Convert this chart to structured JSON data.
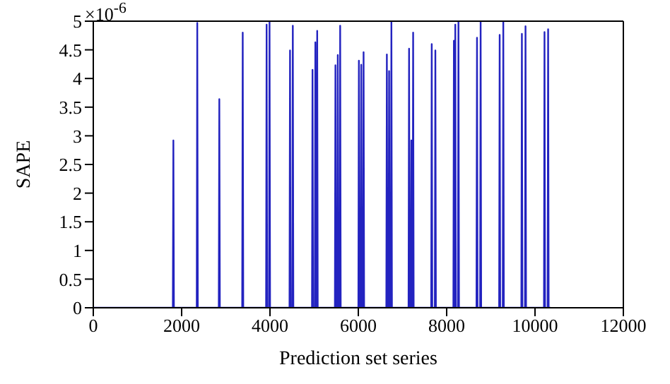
{
  "chart_data": {
    "type": "line",
    "xlabel": "Prediction set series",
    "ylabel": "SAPE",
    "annotations": [
      "×10$^{-6}$"
    ],
    "x": [
      0,
      1801,
      1813,
      1825,
      2342,
      2354,
      2366,
      2841,
      2853,
      2865,
      3371,
      3383,
      3395,
      3912,
      3924,
      3936,
      3978,
      3990,
      4002,
      4442,
      4454,
      4466,
      4505,
      4517,
      4529,
      4951,
      4963,
      4975,
      5015,
      5027,
      5039,
      5057,
      5069,
      5081,
      5470,
      5482,
      5494,
      5523,
      5535,
      5547,
      5577,
      5589,
      5601,
      6001,
      6013,
      6025,
      6054,
      6066,
      6078,
      6107,
      6119,
      6131,
      6634,
      6646,
      6658,
      6685,
      6697,
      6709,
      6737,
      6749,
      6761,
      7137,
      7149,
      7161,
      7188,
      7200,
      7212,
      7229,
      7241,
      7253,
      7650,
      7662,
      7674,
      7732,
      7744,
      7756,
      8152,
      8164,
      8176,
      8183,
      8195,
      8207,
      8255,
      8267,
      8279,
      8675,
      8687,
      8699,
      8757,
      8769,
      8781,
      9188,
      9200,
      9212,
      9270,
      9282,
      9294,
      9691,
      9703,
      9715,
      9773,
      9785,
      9797,
      10203,
      10215,
      10227,
      10285,
      10297,
      10309,
      10350
    ],
    "series": [
      {
        "color": "#2323c0",
        "values": [
          0,
          0,
          2.92,
          0,
          0,
          4.97,
          0,
          0,
          3.64,
          0,
          0,
          4.8,
          0,
          0,
          4.94,
          0,
          0,
          5.0,
          0,
          0,
          4.49,
          0,
          0,
          4.92,
          0,
          0,
          4.15,
          0,
          0,
          4.63,
          0,
          0,
          4.83,
          0,
          0,
          4.23,
          0,
          0,
          4.41,
          0,
          0,
          4.92,
          0,
          0,
          4.31,
          0,
          0,
          4.24,
          0,
          0,
          4.46,
          0,
          0,
          4.42,
          0,
          0,
          4.13,
          0,
          0,
          5.0,
          0,
          0,
          4.52,
          0,
          0,
          2.92,
          0,
          0,
          4.8,
          0,
          0,
          4.6,
          0,
          0,
          4.49,
          0,
          0,
          4.66,
          0,
          0,
          4.94,
          0,
          0,
          5.0,
          0,
          0,
          4.71,
          0,
          0,
          5.0,
          0,
          0,
          4.76,
          0,
          0,
          4.99,
          0,
          0,
          4.78,
          0,
          0,
          4.91,
          0,
          0,
          4.81,
          0,
          0,
          4.86,
          0,
          0
        ]
      }
    ],
    "xlim": [
      0,
      12000
    ],
    "xticks": [
      0,
      2000,
      4000,
      6000,
      8000,
      10000,
      12000
    ],
    "ylim": [
      0,
      5
    ],
    "yticks": [
      0,
      0.5,
      1,
      1.5,
      2,
      2.5,
      3,
      3.5,
      4,
      4.5,
      5
    ],
    "grid": false,
    "legend": false,
    "marker": "none",
    "line_style": "solid"
  }
}
